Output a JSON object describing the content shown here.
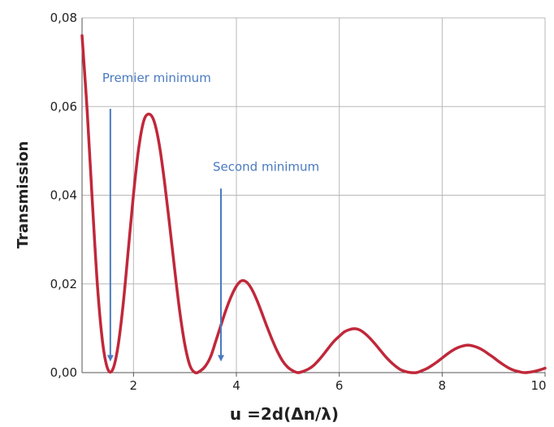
{
  "chart_data": {
    "type": "line",
    "title": "",
    "xlabel": "u =2d(Δn/λ)",
    "ylabel": "Transmission",
    "xlim": [
      1,
      10
    ],
    "ylim": [
      0,
      0.08
    ],
    "grid": true,
    "x_ticks": [
      2,
      4,
      6,
      8,
      10
    ],
    "x_tick_labels": [
      "2",
      "4",
      "6",
      "8",
      "10"
    ],
    "y_ticks": [
      0,
      0.02,
      0.04,
      0.06,
      0.08
    ],
    "y_tick_labels": [
      "0,00",
      "0,02",
      "0,04",
      "0,06",
      "0,08"
    ],
    "series_color": "#c0283a",
    "annotation_color": "#4a7abf",
    "series": [
      {
        "x": [
          1.0,
          1.1,
          1.2,
          1.3,
          1.4,
          1.5,
          1.6,
          1.7,
          1.8,
          1.9,
          2.0,
          2.1,
          2.2,
          2.3,
          2.4,
          2.5,
          2.6,
          2.7,
          2.8,
          2.9,
          3.0,
          3.1,
          3.2,
          3.3,
          3.4,
          3.5,
          3.6,
          3.7,
          3.8,
          3.9,
          4.0,
          4.1,
          4.2,
          4.3,
          4.4,
          4.5,
          4.6,
          4.7,
          4.8,
          4.9,
          5.0,
          5.1,
          5.2,
          5.3,
          5.4,
          5.5,
          5.6,
          5.7,
          5.8,
          5.9,
          6.0,
          6.1,
          6.2,
          6.3,
          6.4,
          6.5,
          6.6,
          6.7,
          6.8,
          6.9,
          7.0,
          7.1,
          7.2,
          7.3,
          7.4,
          7.5,
          7.6,
          7.7,
          7.8,
          7.9,
          8.0,
          8.1,
          8.2,
          8.3,
          8.4,
          8.5,
          8.6,
          8.7,
          8.8,
          8.9,
          9.0,
          9.1,
          9.2,
          9.3,
          9.4,
          9.5,
          9.6,
          9.7,
          9.8,
          9.9,
          10.0
        ],
        "y": [
          0.076,
          0.059,
          0.0385,
          0.0195,
          0.0068,
          0.0008,
          0.0008,
          0.006,
          0.0155,
          0.0278,
          0.0402,
          0.0505,
          0.0568,
          0.0583,
          0.0567,
          0.0515,
          0.0433,
          0.0335,
          0.0233,
          0.0137,
          0.0062,
          0.0015,
          0.0,
          0.0004,
          0.0015,
          0.0036,
          0.0071,
          0.0107,
          0.0142,
          0.0172,
          0.0195,
          0.0207,
          0.0204,
          0.0188,
          0.0163,
          0.0133,
          0.0102,
          0.0073,
          0.0047,
          0.0026,
          0.0012,
          0.0004,
          0.0,
          0.0003,
          0.0008,
          0.0016,
          0.0028,
          0.0042,
          0.0057,
          0.0071,
          0.0082,
          0.0092,
          0.0097,
          0.0099,
          0.0096,
          0.0088,
          0.0077,
          0.0064,
          0.005,
          0.0036,
          0.0024,
          0.0014,
          0.0006,
          0.0002,
          0.0,
          0.0,
          0.0004,
          0.0009,
          0.0016,
          0.0024,
          0.0033,
          0.0042,
          0.005,
          0.0056,
          0.006,
          0.0062,
          0.006,
          0.0056,
          0.005,
          0.0042,
          0.0034,
          0.0025,
          0.0017,
          0.001,
          0.0005,
          0.0002,
          0.0,
          0.0001,
          0.0003,
          0.0006,
          0.001
        ]
      }
    ],
    "annotations": [
      {
        "text": "Premier minimum",
        "x": 1.55,
        "y": 0.0655,
        "arrow_x": 1.55,
        "arrow_y_from": 0.0595,
        "arrow_y_to": 0.0025
      },
      {
        "text": "Second minimum",
        "x": 3.7,
        "y": 0.0455,
        "arrow_x": 3.7,
        "arrow_y_from": 0.0415,
        "arrow_y_to": 0.0025
      }
    ]
  }
}
